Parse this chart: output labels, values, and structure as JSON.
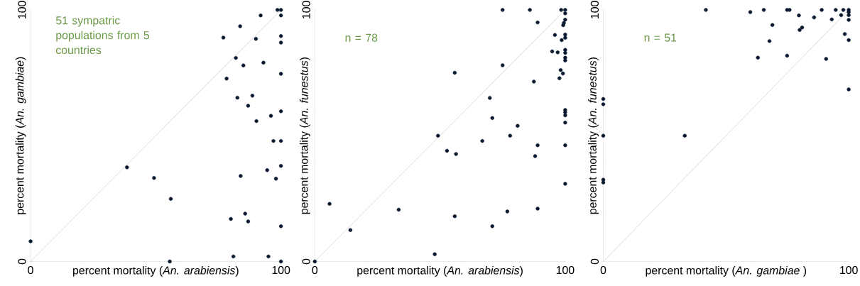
{
  "chart_data": [
    {
      "type": "scatter",
      "xlabel": "percent mortality (*An. arabiensis*)",
      "ylabel": "percent mortality (*An. gambiae*)",
      "xlim": [
        0,
        100
      ],
      "ylim": [
        0,
        100
      ],
      "xticks": [
        0,
        {
          "value": 20,
          "label": null
        },
        {
          "value": 40,
          "label": null
        },
        {
          "value": 60,
          "label": null
        },
        {
          "value": 80,
          "label": null
        },
        100
      ],
      "yticks": [
        0,
        {
          "value": 20,
          "label": null
        },
        {
          "value": 40,
          "label": null
        },
        {
          "value": 60,
          "label": null
        },
        {
          "value": 80,
          "label": null
        },
        100
      ],
      "annotations": [
        "51 sympatric populations from 5 countries"
      ],
      "series": [
        {
          "type": "line",
          "color": "#c8c8c8",
          "x": [
            0,
            100
          ],
          "values": [
            0,
            100
          ]
        },
        {
          "marker": "circle",
          "color": "#0a1a30",
          "x": [
            98.6,
            100,
            91.9,
            100,
            83.7,
            77.0,
            90.0,
            100,
            100,
            82.0,
            85.0,
            93.0,
            100,
            78.3,
            82.6,
            88.6,
            86.9,
            100,
            96.0,
            90.2,
            97.0,
            100,
            38.5,
            100,
            94.5,
            83.9,
            49.3,
            98.0,
            56.0,
            85.7,
            80.0,
            86.9,
            100,
            0,
            81.0,
            95.0,
            55.6,
            100
          ],
          "values": [
            100,
            100,
            97.8,
            97.8,
            93.5,
            89.0,
            88.5,
            89.6,
            87.0,
            80.9,
            77.9,
            79.0,
            74.6,
            72.7,
            65.1,
            65.9,
            61.9,
            59.7,
            57.9,
            55.8,
            47.9,
            47.9,
            37.4,
            38.0,
            36.3,
            34.0,
            33.2,
            32.9,
            24.9,
            19.0,
            16.9,
            15.9,
            14.0,
            8.0,
            2.0,
            2.0,
            0,
            0
          ]
        }
      ]
    },
    {
      "type": "scatter",
      "xlabel": "percent mortality (*An. arabiensis*)",
      "ylabel": "percent mortality (*An. funestus*)",
      "xlim": [
        0,
        100
      ],
      "ylim": [
        0,
        100
      ],
      "xticks": [
        0,
        {
          "value": 20,
          "label": null
        },
        {
          "value": 40,
          "label": null
        },
        {
          "value": 60,
          "label": null
        },
        {
          "value": 80,
          "label": null
        },
        100
      ],
      "yticks": [
        0,
        {
          "value": 20,
          "label": null
        },
        {
          "value": 40,
          "label": null
        },
        {
          "value": 60,
          "label": null
        },
        {
          "value": 80,
          "label": null
        },
        100
      ],
      "annotations": [
        "n = 78"
      ],
      "series": [
        {
          "type": "line",
          "color": "#c8c8c8",
          "x": [
            0,
            100
          ],
          "values": [
            0,
            100
          ]
        },
        {
          "marker": "circle",
          "color": "#0a1a30",
          "x": [
            0,
            5.9,
            14.2,
            33.5,
            47.9,
            49.2,
            52.8,
            56.4,
            55.9,
            55.9,
            66.9,
            69.9,
            70.9,
            70.9,
            75.0,
            75.0,
            76.9,
            78.0,
            81.0,
            85.9,
            87.5,
            88.0,
            89.0,
            89.0,
            89.0,
            94.8,
            95.9,
            97.0,
            97.7,
            98.2,
            98.4,
            98.6,
            99.1,
            99.2,
            99.5,
            100,
            100,
            100,
            100,
            100,
            100,
            100,
            100,
            100,
            100,
            100,
            100,
            100,
            100,
            100
          ],
          "values": [
            0,
            22.9,
            12.5,
            20.6,
            2.9,
            50.0,
            44.0,
            42.7,
            75.0,
            18.0,
            47.9,
            65.0,
            57.0,
            14.0,
            100,
            78.0,
            19.9,
            50.0,
            53.9,
            100,
            71.5,
            41.9,
            95.0,
            46.2,
            21.0,
            83.5,
            90.0,
            83.1,
            72.8,
            76.1,
            100,
            88.0,
            74.7,
            93.9,
            94.8,
            100,
            98.6,
            96.1,
            90.2,
            88.9,
            84.1,
            82.9,
            81.0,
            79.9,
            60.2,
            59.3,
            58.1,
            55.2,
            46.2,
            30.9
          ]
        }
      ]
    },
    {
      "type": "scatter",
      "xlabel": "percent mortality (*An. gambiae* )",
      "ylabel": "percent mortality (*An. funestus*)",
      "xlim": [
        0,
        100
      ],
      "ylim": [
        0,
        100
      ],
      "xticks": [
        0,
        {
          "value": 20,
          "label": null
        },
        {
          "value": 40,
          "label": null
        },
        {
          "value": 60,
          "label": null
        },
        {
          "value": 80,
          "label": null
        },
        100
      ],
      "yticks": [
        0,
        {
          "value": 20,
          "label": null
        },
        {
          "value": 40,
          "label": null
        },
        {
          "value": 60,
          "label": null
        },
        {
          "value": 80,
          "label": null
        },
        100
      ],
      "annotations": [
        "n = 51"
      ],
      "series": [
        {
          "type": "line",
          "color": "#c8c8c8",
          "x": [
            0,
            100
          ],
          "values": [
            0,
            100
          ]
        },
        {
          "marker": "circle",
          "color": "#0a1a30",
          "x": [
            41.8,
            59.9,
            65.4,
            68.9,
            67.7,
            63.0,
            74.9,
            75.9,
            74.9,
            79.7,
            80.0,
            81.0,
            85.9,
            89.0,
            90.8,
            93.1,
            94.7,
            96.9,
            97.8,
            98.4,
            100,
            100,
            100,
            100,
            100,
            100,
            0,
            0,
            0,
            33.2,
            0,
            0
          ],
          "values": [
            100,
            99.1,
            100,
            94.0,
            87.6,
            81.0,
            100,
            100,
            81.8,
            97.8,
            92.0,
            93.0,
            97.0,
            100,
            80.5,
            96.2,
            100,
            97.9,
            100,
            90.4,
            100,
            99.1,
            97.9,
            96.0,
            88.0,
            68.4,
            64.6,
            62.5,
            50.0,
            50.0,
            32.5,
            31.4
          ]
        }
      ]
    }
  ]
}
